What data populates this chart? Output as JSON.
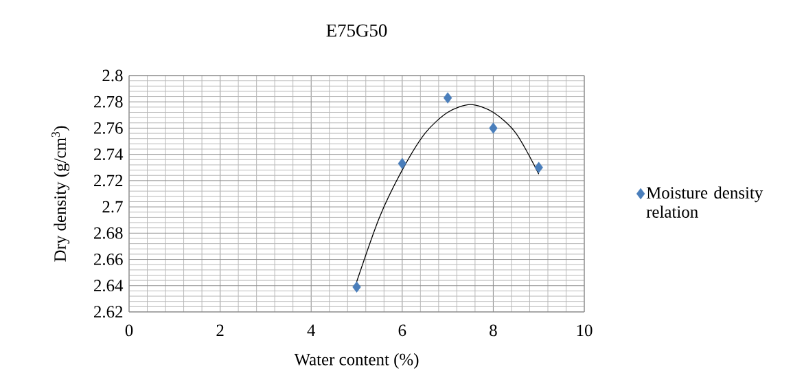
{
  "chart_data": {
    "type": "scatter",
    "title": "E75G50",
    "xlabel": "Water content (%)",
    "ylabel": "Dry density (g/cm$^{3}$)",
    "xlim": [
      0,
      10
    ],
    "xticks": [
      0,
      2,
      4,
      6,
      8,
      10
    ],
    "ylim": [
      2.62,
      2.8
    ],
    "yticks": [
      2.62,
      2.64,
      2.66,
      2.68,
      2.7,
      2.72,
      2.74,
      2.76,
      2.78,
      2.8
    ],
    "grid": true,
    "legend": "right",
    "marker": "diamond",
    "series": [
      {
        "name": "Moisture density relation",
        "color": "#4a7ebb",
        "x": [
          5,
          6,
          7,
          8,
          9
        ],
        "values": [
          2.639,
          2.733,
          2.783,
          2.76,
          2.73
        ]
      },
      {
        "type": "line",
        "marker": "none",
        "color": "#000000",
        "x": [
          5,
          5.5,
          6,
          6.5,
          7,
          7.5,
          8,
          8.5,
          9
        ],
        "values": [
          2.643,
          2.692,
          2.728,
          2.756,
          2.772,
          2.778,
          2.772,
          2.756,
          2.725
        ]
      }
    ]
  }
}
